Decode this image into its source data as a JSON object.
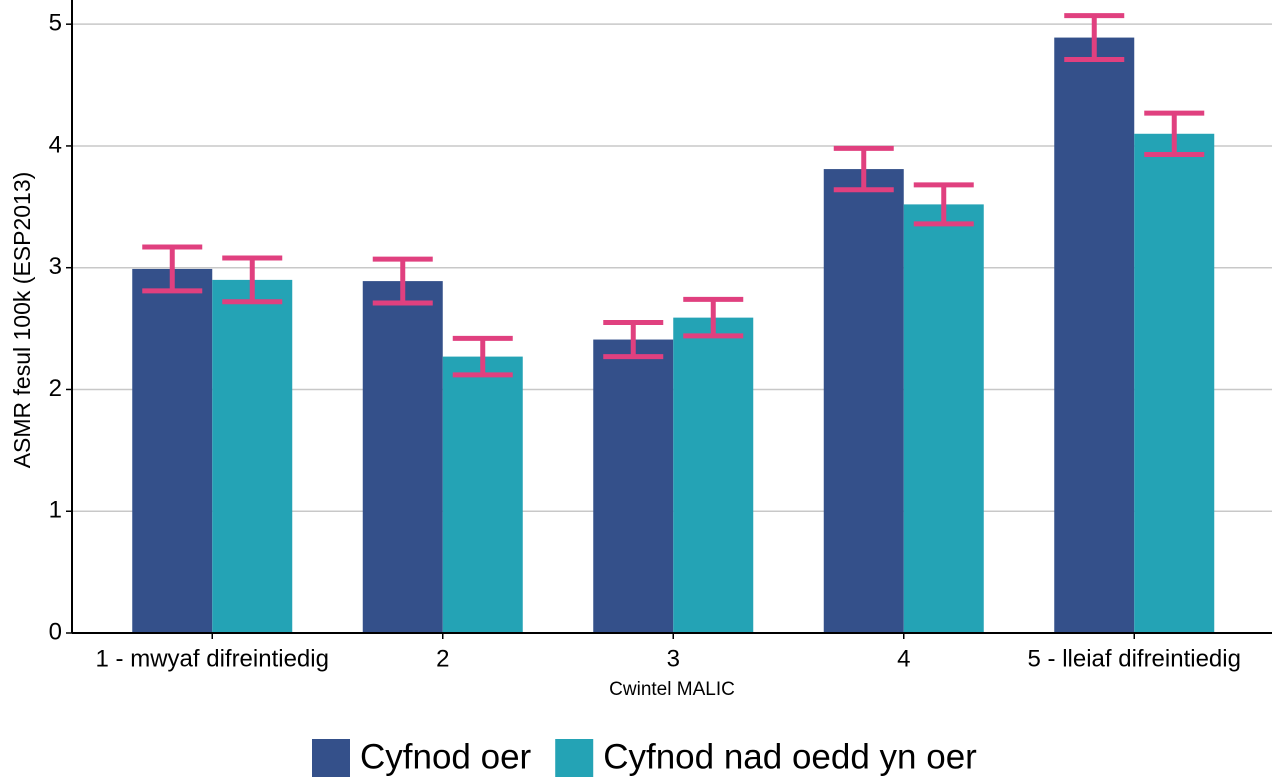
{
  "chart_data": {
    "type": "bar",
    "x_label": "Cwintel MALIC",
    "y_label": "ASMR fesul 100k (ESP2013)",
    "categories": [
      "1 - mwyaf difreintiedig",
      "2",
      "3",
      "4",
      "5 - lleiaf difreintiedig"
    ],
    "series": [
      {
        "name": "Cyfnod oer",
        "color": "#34508a",
        "values": [
          2.99,
          2.89,
          2.41,
          3.81,
          4.89
        ],
        "errors": [
          0.18,
          0.18,
          0.14,
          0.17,
          0.18
        ]
      },
      {
        "name": "Cyfnod nad oedd yn oer",
        "color": "#24a3b5",
        "values": [
          2.9,
          2.27,
          2.59,
          3.52,
          4.1
        ],
        "errors": [
          0.18,
          0.15,
          0.15,
          0.16,
          0.17
        ]
      }
    ],
    "error_color": "#e0407f",
    "ylim": [
      0,
      5.1
    ],
    "yticks": [
      0,
      1,
      2,
      3,
      4,
      5
    ],
    "grid": true,
    "legend": "bottom"
  }
}
